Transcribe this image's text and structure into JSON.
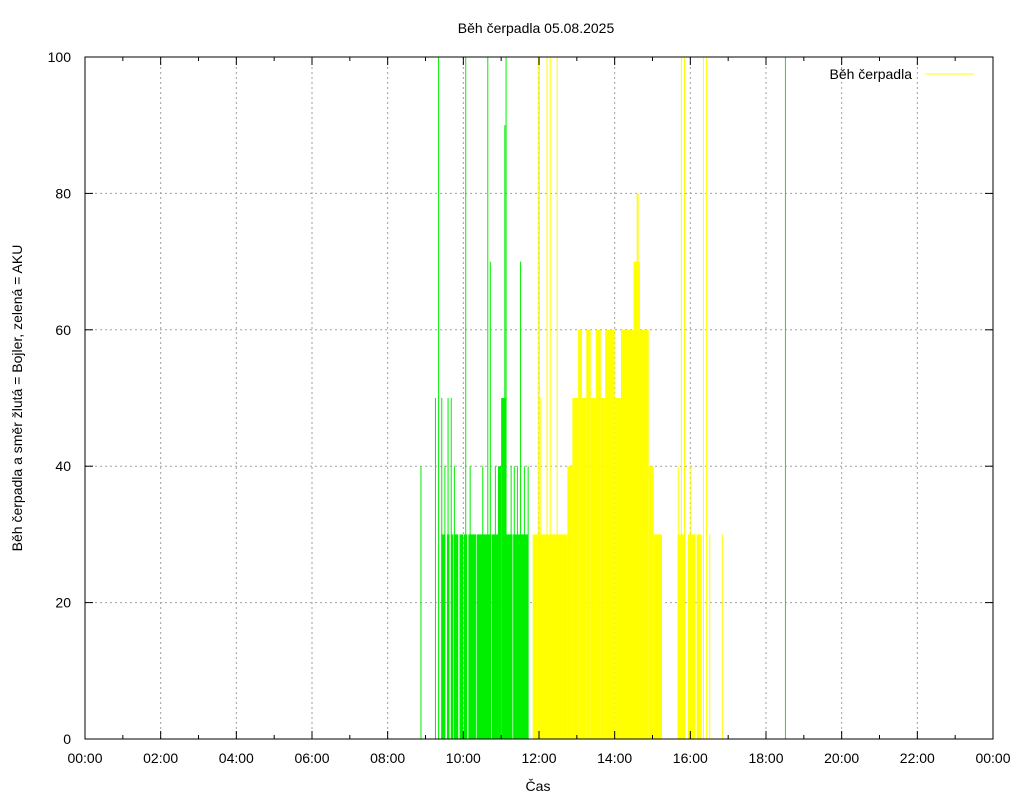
{
  "chart_data": {
    "type": "bar",
    "title": "Běh čerpadla 05.08.2025",
    "xlabel": "Čas",
    "ylabel": "Běh čerpadla a směr žlutá = Bojler, zelená = AKU",
    "xlim": [
      "00:00",
      "24:00"
    ],
    "ylim": [
      0,
      100
    ],
    "x_ticks": [
      "00:00",
      "02:00",
      "04:00",
      "06:00",
      "08:00",
      "10:00",
      "12:00",
      "14:00",
      "16:00",
      "18:00",
      "20:00",
      "22:00",
      "00:00"
    ],
    "y_ticks": [
      0,
      20,
      40,
      60,
      80,
      100
    ],
    "grid": true,
    "legend": {
      "position": "top-right",
      "entries": [
        {
          "label": "Běh čerpadla",
          "color": "#ffff00"
        }
      ]
    },
    "colors": {
      "AKU": "#00ee00",
      "Bojler": "#ffff00",
      "grid": "#a0a0a0",
      "axis": "#000000"
    },
    "series": [
      {
        "direction": "AKU",
        "color": "#00ee00",
        "lines": [
          [
            "08:52",
            40
          ],
          [
            "09:15",
            50
          ],
          [
            "09:20",
            100
          ],
          [
            "09:25",
            50
          ],
          [
            "09:30",
            40
          ],
          [
            "09:35",
            50
          ],
          [
            "09:40",
            50
          ],
          [
            "09:45",
            40
          ],
          [
            "10:03",
            100
          ],
          [
            "10:10",
            40
          ],
          [
            "10:30",
            40
          ],
          [
            "10:38",
            100
          ],
          [
            "10:42",
            70
          ],
          [
            "10:50",
            40
          ],
          [
            "10:57",
            40
          ],
          [
            "11:02",
            40
          ],
          [
            "11:07",
            100
          ],
          [
            "11:15",
            40
          ],
          [
            "11:20",
            40
          ],
          [
            "11:25",
            40
          ],
          [
            "11:30",
            70
          ],
          [
            "11:36",
            40
          ],
          [
            "11:42",
            40
          ],
          [
            "18:30",
            100
          ]
        ],
        "blocks": [
          [
            "09:25",
            "09:31",
            30
          ],
          [
            "09:34",
            "09:38",
            30
          ],
          [
            "09:41",
            "09:44",
            30
          ],
          [
            "09:46",
            "09:52",
            30
          ],
          [
            "09:54",
            "10:00",
            30
          ],
          [
            "10:01",
            "10:06",
            30
          ],
          [
            "10:08",
            "10:20",
            30
          ],
          [
            "10:21",
            "10:44",
            30
          ],
          [
            "10:45",
            "10:55",
            30
          ],
          [
            "10:55",
            "11:00",
            40
          ],
          [
            "11:00",
            "11:08",
            50
          ],
          [
            "11:08",
            "11:18",
            30
          ],
          [
            "11:19",
            "11:43",
            30
          ],
          [
            "11:05",
            "11:06",
            90
          ]
        ]
      },
      {
        "direction": "Bojler",
        "color": "#ffff00",
        "lines": [
          [
            "11:58",
            100
          ],
          [
            "12:00",
            100
          ],
          [
            "12:02",
            50
          ],
          [
            "12:12",
            100
          ],
          [
            "12:17",
            100
          ],
          [
            "12:28",
            100
          ],
          [
            "15:40",
            40
          ],
          [
            "15:45",
            100
          ],
          [
            "15:50",
            100
          ],
          [
            "16:00",
            40
          ],
          [
            "16:05",
            30
          ],
          [
            "16:12",
            30
          ],
          [
            "16:20",
            100
          ],
          [
            "16:25",
            100
          ],
          [
            "16:30",
            30
          ],
          [
            "16:50",
            30
          ]
        ],
        "blocks": [
          [
            "11:50",
            "12:15",
            30
          ],
          [
            "12:15",
            "12:45",
            30
          ],
          [
            "12:45",
            "12:53",
            40
          ],
          [
            "12:53",
            "13:02",
            50
          ],
          [
            "13:02",
            "13:08",
            60
          ],
          [
            "13:08",
            "13:15",
            50
          ],
          [
            "13:15",
            "13:22",
            60
          ],
          [
            "13:22",
            "13:30",
            50
          ],
          [
            "13:30",
            "13:38",
            60
          ],
          [
            "13:38",
            "13:45",
            50
          ],
          [
            "13:45",
            "14:00",
            60
          ],
          [
            "14:00",
            "14:10",
            50
          ],
          [
            "14:10",
            "14:30",
            60
          ],
          [
            "14:30",
            "14:40",
            70
          ],
          [
            "14:35",
            "14:38",
            80
          ],
          [
            "14:40",
            "14:54",
            60
          ],
          [
            "14:54",
            "15:02",
            40
          ],
          [
            "15:02",
            "15:15",
            30
          ],
          [
            "15:40",
            "15:52",
            30
          ],
          [
            "15:56",
            "16:08",
            30
          ],
          [
            "16:10",
            "16:18",
            30
          ]
        ]
      }
    ]
  }
}
